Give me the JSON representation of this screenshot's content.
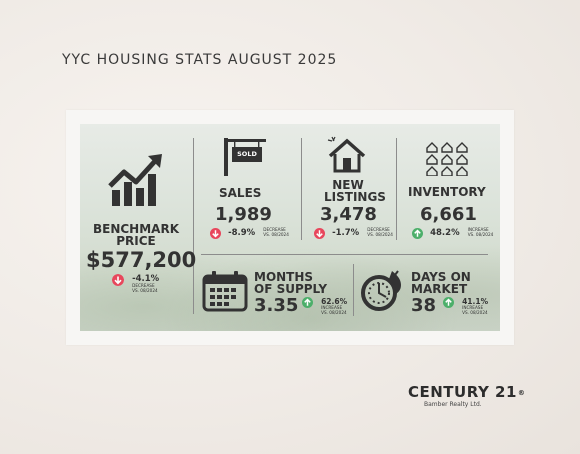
{
  "header": {
    "title": "YYC HOUSING STATS AUGUST 2025"
  },
  "benchmark": {
    "label_line1": "BENCHMARK",
    "label_line2": "PRICE",
    "value": "$577,200",
    "change": "-4.1%",
    "change_type": "DECREASE",
    "compare": "VS. 08/2024",
    "direction": "down"
  },
  "sales": {
    "label": "SALES",
    "sign_text": "SOLD",
    "value": "1,989",
    "change": "-8.9%",
    "change_type": "DECREASE",
    "compare": "VS. 08/2024",
    "direction": "down"
  },
  "new_listings": {
    "label_line1": "NEW",
    "label_line2": "LISTINGS",
    "value": "3,478",
    "change": "-1.7%",
    "change_type": "DECREASE",
    "compare": "VS. 08/2024",
    "direction": "down"
  },
  "inventory": {
    "label": "INVENTORY",
    "value": "6,661",
    "change": "48.2%",
    "change_type": "INCREASE",
    "compare": "VS. 08/2024",
    "direction": "up"
  },
  "months_of_supply": {
    "label_line1": "MONTHS",
    "label_line2": "OF SUPPLY",
    "value": "3.35",
    "change": "62.6%",
    "change_type": "INCREASE",
    "compare": "VS. 08/2024",
    "direction": "up"
  },
  "days_on_market": {
    "label_line1": "DAYS ON",
    "label_line2": "MARKET",
    "value": "38",
    "change": "41.1%",
    "change_type": "INCREASE",
    "compare": "VS. 08/2024",
    "direction": "up"
  },
  "brand": {
    "name": "CENTURY 21",
    "mark": "®",
    "office": "Bamber Realty Ltd."
  },
  "colors": {
    "down": "#e8465c",
    "up": "#4caf6a",
    "text": "#333333"
  },
  "icons": [
    "bar-chart-up-icon",
    "sold-sign-icon",
    "house-icon",
    "houses-grid-icon",
    "calendar-icon",
    "stopwatch-icon",
    "arrow-down-icon",
    "arrow-up-icon"
  ]
}
